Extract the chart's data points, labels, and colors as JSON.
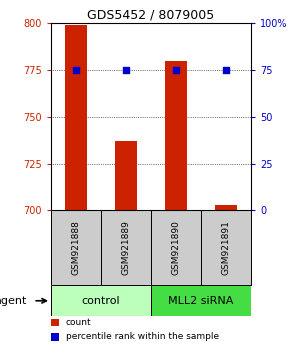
{
  "title": "GDS5452 / 8079005",
  "samples": [
    "GSM921888",
    "GSM921889",
    "GSM921890",
    "GSM921891"
  ],
  "bar_values": [
    799,
    737,
    780,
    703
  ],
  "percentile_values": [
    75,
    75,
    75,
    75
  ],
  "ymin": 700,
  "ymax": 800,
  "yticks": [
    700,
    725,
    750,
    775,
    800
  ],
  "right_yticks": [
    0,
    25,
    50,
    75,
    100
  ],
  "bar_color": "#cc2200",
  "dot_color": "#0000cc",
  "agent_groups": [
    {
      "label": "control",
      "samples": [
        0,
        1
      ],
      "color": "#bbffbb"
    },
    {
      "label": "MLL2 siRNA",
      "samples": [
        2,
        3
      ],
      "color": "#44dd44"
    }
  ],
  "grid_values": [
    725,
    750,
    775
  ],
  "title_fontsize": 9,
  "tick_fontsize": 7,
  "sample_label_fontsize": 6.5,
  "agent_fontsize": 8,
  "legend_fontsize": 6.5,
  "left_tick_color": "#cc2200",
  "right_tick_color": "#0000cc",
  "sample_bg_color": "#cccccc",
  "agent_label": "agent",
  "agent_arrow_color": "#555555"
}
